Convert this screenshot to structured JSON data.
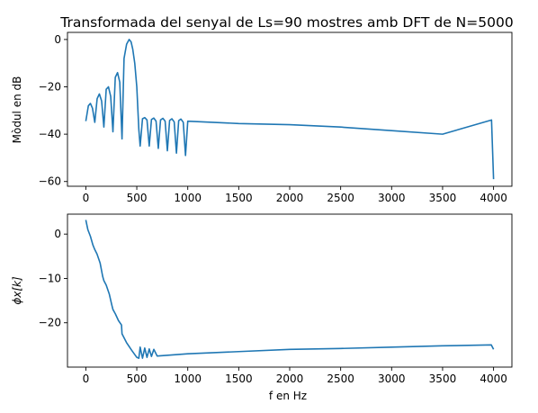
{
  "figure": {
    "title": "Transformada del senyal de Ls=90 mostres amb DFT de N=5000"
  },
  "colors": {
    "series": "#1f77b4"
  },
  "chart_data": [
    {
      "type": "line",
      "title": "Transformada del senyal de Ls=90 mostres amb DFT de N=5000",
      "xlabel": "",
      "ylabel": "Mòdul en dB",
      "xlim": [
        -180,
        4180
      ],
      "ylim": [
        -62,
        3
      ],
      "xticks": [
        0,
        500,
        1000,
        1500,
        2000,
        2500,
        3000,
        3500,
        4000
      ],
      "xtick_labels": [
        "0",
        "500",
        "1000",
        "1500",
        "2000",
        "2500",
        "3000",
        "3500",
        "4000"
      ],
      "yticks": [
        0,
        -20,
        -40,
        -60
      ],
      "ytick_labels": [
        "0",
        "−20",
        "−40",
        "−60"
      ],
      "series": [
        {
          "x": [
            0,
            25,
            45,
            65,
            88,
            111,
            133,
            155,
            177,
            200,
            222,
            244,
            266,
            289,
            311,
            333,
            355,
            375,
            400,
            425,
            444,
            460,
            480,
            500,
            520,
            533,
            556,
            578,
            600,
            622,
            644,
            667,
            689,
            711,
            733,
            756,
            778,
            800,
            822,
            844,
            867,
            889,
            911,
            933,
            956,
            978,
            1000,
            1500,
            2000,
            2500,
            3000,
            3500,
            3980,
            4000
          ],
          "y": [
            -34.5,
            -28,
            -27,
            -29,
            -35,
            -25,
            -23,
            -26,
            -37,
            -21,
            -20,
            -24,
            -39,
            -16,
            -14,
            -18,
            -42,
            -8,
            -2,
            0,
            -1,
            -4,
            -10,
            -20,
            -38,
            -45,
            -33.5,
            -33,
            -34,
            -45,
            -33.8,
            -33.2,
            -34.5,
            -46,
            -34,
            -33.3,
            -34.5,
            -47,
            -34.2,
            -33.5,
            -34.8,
            -48,
            -34.3,
            -33.6,
            -35,
            -49,
            -34.5,
            -35.5,
            -36,
            -37,
            -38.5,
            -40,
            -34,
            -59
          ]
        }
      ]
    },
    {
      "type": "line",
      "title": "",
      "xlabel": "f en Hz",
      "ylabel": "ϕx[k]",
      "xlim": [
        -180,
        4180
      ],
      "ylim": [
        -30,
        4.5
      ],
      "xticks": [
        0,
        500,
        1000,
        1500,
        2000,
        2500,
        3000,
        3500,
        4000
      ],
      "xtick_labels": [
        "0",
        "500",
        "1000",
        "1500",
        "2000",
        "2500",
        "3000",
        "3500",
        "4000"
      ],
      "yticks": [
        0,
        -10,
        -20
      ],
      "ytick_labels": [
        "0",
        "−10",
        "−20"
      ],
      "series": [
        {
          "x": [
            0,
            20,
            45,
            70,
            88,
            110,
            140,
            165,
            177,
            200,
            230,
            255,
            266,
            290,
            320,
            350,
            355,
            400,
            450,
            500,
            520,
            533,
            556,
            578,
            600,
            622,
            644,
            667,
            700,
            1000,
            1500,
            2000,
            2500,
            3000,
            3500,
            3978,
            4000
          ],
          "y": [
            3.2,
            1.0,
            -0.5,
            -2.5,
            -3.5,
            -4.5,
            -6.5,
            -9.5,
            -10.5,
            -11.5,
            -13.5,
            -16,
            -17,
            -18,
            -19.5,
            -20.5,
            -22.5,
            -24.5,
            -26.2,
            -27.8,
            -28.0,
            -25.5,
            -28.0,
            -25.7,
            -27.8,
            -25.9,
            -27.6,
            -26,
            -27.5,
            -27,
            -26.5,
            -26,
            -25.8,
            -25.5,
            -25.2,
            -25,
            -26
          ]
        }
      ]
    }
  ]
}
